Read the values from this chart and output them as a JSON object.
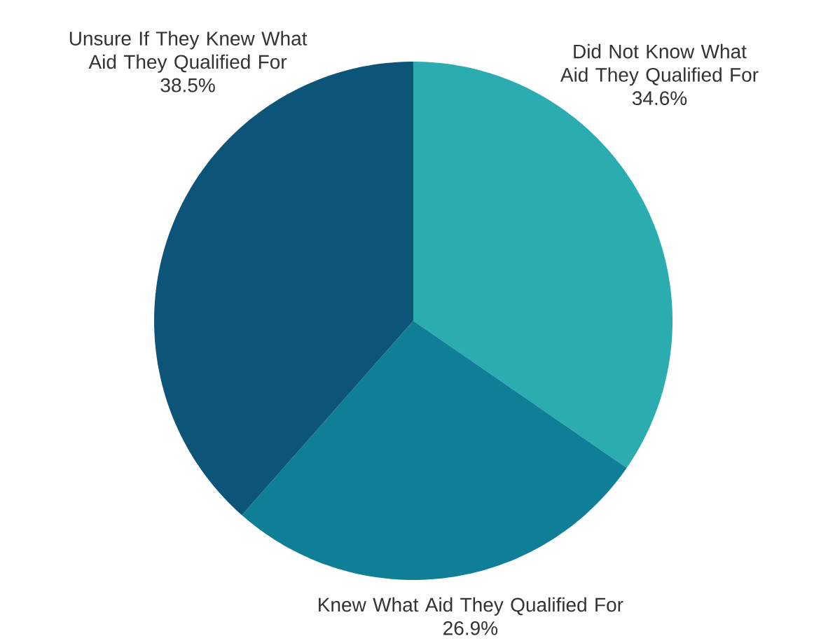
{
  "chart_data": {
    "type": "pie",
    "categories": [
      "Did Not Know What Aid They Qualified For",
      "Knew What Aid They Qualified For",
      "Unsure If They Knew What Aid They Qualified For"
    ],
    "values": [
      34.6,
      26.9,
      38.5
    ],
    "value_labels": [
      "34.6%",
      "26.9%",
      "38.5%"
    ],
    "colors": [
      "#2aacb0",
      "#0e7f97",
      "#0c5478"
    ]
  }
}
